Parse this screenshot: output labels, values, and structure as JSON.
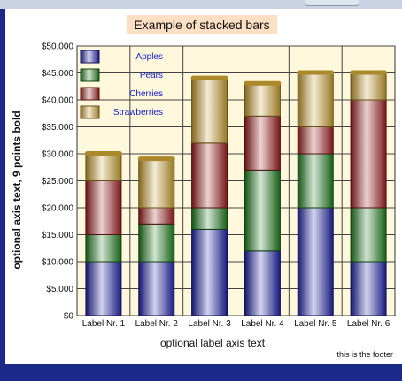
{
  "window": {
    "frame_color": "#1b2a8a",
    "titlebar_color": "#c9d3e3"
  },
  "footer": "this is the footer",
  "chart_data": {
    "type": "bar",
    "stacked": true,
    "title": "Example of stacked bars",
    "xlabel": "optional label axis text",
    "ylabel": "optional axis text, 9 points bold",
    "categories": [
      "Label Nr. 1",
      "Label Nr. 2",
      "Label Nr. 3",
      "Label Nr. 4",
      "Label Nr. 5",
      "Label Nr. 6"
    ],
    "series": [
      {
        "name": "Apples",
        "values": [
          10000,
          10000,
          16000,
          12000,
          20000,
          10000
        ],
        "color": "#1f22a8"
      },
      {
        "name": "Pears",
        "values": [
          5000,
          7000,
          4000,
          15000,
          10000,
          10000
        ],
        "color": "#1e7e1e"
      },
      {
        "name": "Cherries",
        "values": [
          10000,
          3000,
          12000,
          10000,
          5000,
          20000
        ],
        "color": "#a01e1e"
      },
      {
        "name": "Strawberries",
        "values": [
          5000,
          9000,
          12000,
          6000,
          10000,
          5000
        ],
        "color": "#c9a030"
      }
    ],
    "yticks": [
      "$0",
      "$5.000",
      "$10.000",
      "$15.000",
      "$20.000",
      "$25.000",
      "$30.000",
      "$35.000",
      "$40.000",
      "$45.000",
      "$50.000"
    ],
    "ylim": [
      0,
      50000
    ],
    "grid": true,
    "legend_position": "top-left",
    "plot_background": "#fff8dc",
    "title_background": "#fde0c4"
  }
}
